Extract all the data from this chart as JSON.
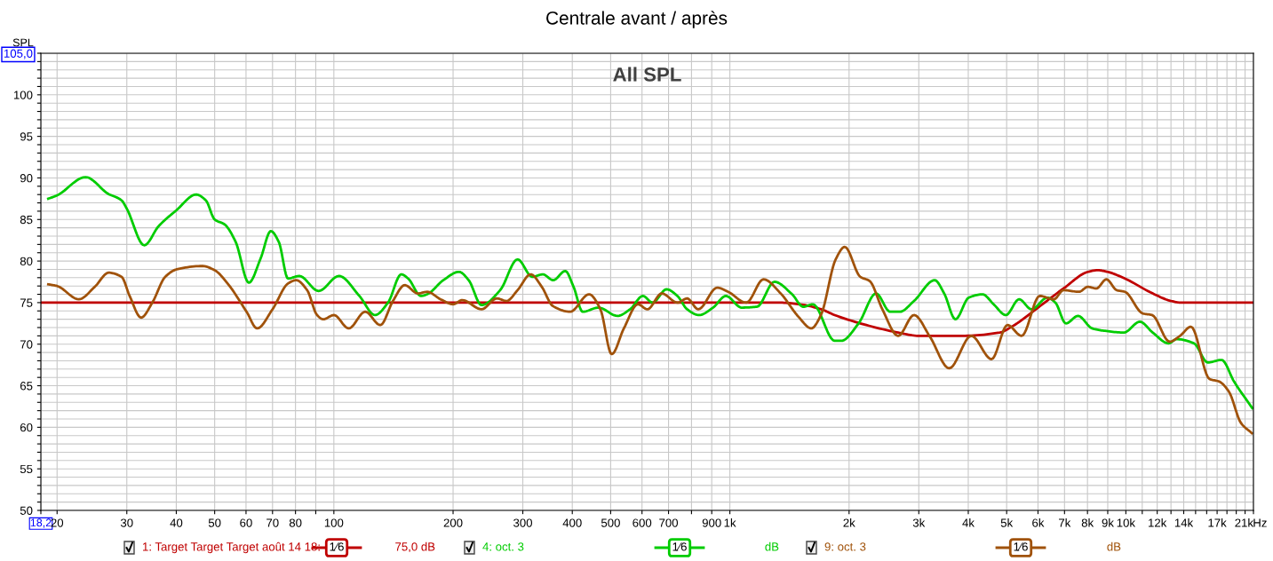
{
  "chart_data": {
    "type": "line",
    "title": "Centrale avant / après",
    "ylabel": "SPL",
    "annotations": [
      "All SPL",
      "1⁄6",
      "75,0 dB",
      "1⁄6",
      "dB",
      "1⁄6",
      "dB"
    ],
    "xlim": [
      18.2,
      21000
    ],
    "ylim": [
      50,
      105
    ],
    "log": "x",
    "grid": true,
    "legend": "bottom",
    "xticks": [
      {
        "value": 18.2,
        "label": "18,2"
      },
      20,
      30,
      40,
      50,
      60,
      70,
      80,
      {
        "value": 90,
        "label": null
      },
      100,
      200,
      300,
      400,
      500,
      600,
      700,
      {
        "value": 800,
        "label": null
      },
      900,
      {
        "value": 1000,
        "label": "1k"
      },
      {
        "value": 2000,
        "label": "2k"
      },
      {
        "value": 3000,
        "label": "3k"
      },
      {
        "value": 4000,
        "label": "4k"
      },
      {
        "value": 5000,
        "label": "5k"
      },
      {
        "value": 6000,
        "label": "6k"
      },
      {
        "value": 7000,
        "label": "7k"
      },
      {
        "value": 8000,
        "label": "8k"
      },
      {
        "value": 9000,
        "label": "9k"
      },
      {
        "value": 10000,
        "label": "10k"
      },
      {
        "value": 11000,
        "label": null
      },
      {
        "value": 12000,
        "label": "12k"
      },
      {
        "value": 13000,
        "label": null
      },
      {
        "value": 14000,
        "label": "14k"
      },
      {
        "value": 15000,
        "label": null
      },
      {
        "value": 16000,
        "label": null
      },
      {
        "value": 17000,
        "label": "17k"
      },
      {
        "value": 18000,
        "label": null
      },
      {
        "value": 19000,
        "label": null
      },
      {
        "value": 20000,
        "label": null
      },
      {
        "value": 21000,
        "label": "21k"
      }
    ],
    "xlabel": "Hz",
    "yticks": [
      50,
      {
        "value": 51,
        "label": null
      },
      {
        "value": 52,
        "label": null
      },
      {
        "value": 53,
        "label": null
      },
      {
        "value": 54,
        "label": null
      },
      55,
      {
        "value": 56,
        "label": null
      },
      {
        "value": 57,
        "label": null
      },
      {
        "value": 58,
        "label": null
      },
      {
        "value": 59,
        "label": null
      },
      60,
      {
        "value": 61,
        "label": null
      },
      {
        "value": 62,
        "label": null
      },
      {
        "value": 63,
        "label": null
      },
      {
        "value": 64,
        "label": null
      },
      65,
      {
        "value": 66,
        "label": null
      },
      {
        "value": 67,
        "label": null
      },
      {
        "value": 68,
        "label": null
      },
      {
        "value": 69,
        "label": null
      },
      70,
      {
        "value": 71,
        "label": null
      },
      {
        "value": 72,
        "label": null
      },
      {
        "value": 73,
        "label": null
      },
      {
        "value": 74,
        "label": null
      },
      75,
      {
        "value": 76,
        "label": null
      },
      {
        "value": 77,
        "label": null
      },
      {
        "value": 78,
        "label": null
      },
      {
        "value": 79,
        "label": null
      },
      80,
      {
        "value": 81,
        "label": null
      },
      {
        "value": 82,
        "label": null
      },
      {
        "value": 83,
        "label": null
      },
      {
        "value": 84,
        "label": null
      },
      85,
      {
        "value": 86,
        "label": null
      },
      {
        "value": 87,
        "label": null
      },
      {
        "value": 88,
        "label": null
      },
      {
        "value": 89,
        "label": null
      },
      90,
      {
        "value": 91,
        "label": null
      },
      {
        "value": 92,
        "label": null
      },
      {
        "value": 93,
        "label": null
      },
      {
        "value": 94,
        "label": null
      },
      95,
      {
        "value": 96,
        "label": null
      },
      {
        "value": 97,
        "label": null
      },
      {
        "value": 98,
        "label": null
      },
      {
        "value": 99,
        "label": null
      },
      100,
      {
        "value": 101,
        "label": null
      },
      {
        "value": 102,
        "label": null
      },
      {
        "value": 103,
        "label": null
      },
      {
        "value": 104,
        "label": null
      },
      {
        "value": 105,
        "label": "105,0"
      }
    ],
    "series": [
      {
        "name": "1: Target Target Target août 14 18:",
        "color": "#c00000",
        "x": [
          18.2,
          1330,
          1500,
          1700,
          1840,
          2211,
          2660,
          3000,
          3850,
          4800,
          5190,
          6000,
          6960,
          8020,
          8490,
          8990,
          9942,
          11690,
          13000,
          13750,
          20860
        ],
        "values": [
          75,
          75,
          74.8,
          74.2,
          73.5,
          72.3,
          71.4,
          71,
          71,
          71.4,
          72.2,
          74.4,
          76.7,
          78.7,
          78.9,
          78.7,
          77.9,
          76.1,
          75.2,
          75,
          75
        ]
      },
      {
        "name": "4: oct. 3",
        "color": "#00cc00",
        "x": [
          19,
          20,
          23.6,
          26.9,
          29.1,
          30,
          33.2,
          36.1,
          40,
          44.9,
          47.5,
          50,
          53,
          56.5,
          61,
          65.3,
          69.3,
          72.6,
          76.6,
          81.8,
          91.5,
          103,
          116,
          127,
          137,
          148,
          154,
          166,
          172,
          189,
          207,
          219,
          236,
          263,
          291,
          317,
          337,
          358,
          384,
          403,
          425,
          466,
          520,
          560,
          603,
          638,
          692,
          737,
          780,
          836,
          907,
          977,
          1071,
          1171,
          1296,
          1436,
          1532,
          1620,
          1840,
          1910,
          2114,
          2340,
          2540,
          2686,
          2918,
          3290,
          3477,
          3712,
          4012,
          4345,
          4635,
          4977,
          5376,
          5776,
          6336,
          6637,
          7058,
          7572,
          8220,
          8856,
          9885,
          10848,
          11690,
          12820,
          13430,
          14860,
          16100,
          17450,
          18760,
          20860
        ],
        "values": [
          87.5,
          87.9,
          90.1,
          88.1,
          87.3,
          86.3,
          81.9,
          84.2,
          86.1,
          88.0,
          87.3,
          85.0,
          84.4,
          82.3,
          77.4,
          80.3,
          83.6,
          82.3,
          77.9,
          78.2,
          76.4,
          78.2,
          75.8,
          73.5,
          75,
          78.4,
          77.9,
          75.8,
          76,
          77.7,
          78.7,
          77.7,
          74.7,
          76.5,
          80.2,
          78.1,
          78.4,
          77.7,
          78.8,
          76.9,
          73.9,
          74.4,
          73.4,
          74.2,
          75.8,
          75,
          76.6,
          75.8,
          74.2,
          73.5,
          74.4,
          75.8,
          74.4,
          74.5,
          77.5,
          76,
          74.5,
          74.8,
          70.4,
          70.4,
          72.5,
          76.1,
          73.9,
          73.9,
          75.2,
          77.7,
          76.1,
          73,
          75.6,
          76,
          74.8,
          73.5,
          75.4,
          74.2,
          75.6,
          75,
          72.5,
          73.4,
          71.9,
          71.6,
          71.4,
          72.7,
          71.4,
          70.1,
          70.6,
          70.1,
          67.8,
          68.1,
          65.5,
          62.3
        ]
      },
      {
        "name": "9: oct. 3",
        "color": "#a0520a",
        "x": [
          19,
          20,
          22.7,
          24.9,
          27,
          29.1,
          30.5,
          32.6,
          34.8,
          37.5,
          40.1,
          46.6,
          50,
          53.9,
          60.2,
          64,
          70,
          76.6,
          80.3,
          85.6,
          90.7,
          94,
          100,
          109,
          120,
          131,
          141,
          151,
          163,
          172,
          186,
          200,
          211,
          236,
          258,
          273,
          291,
          314,
          335,
          357,
          395,
          441,
          471,
          503,
          540,
          586,
          619,
          673,
          737,
          780,
          832,
          929,
          990,
          1100,
          1216,
          1344,
          1490,
          1606,
          1698,
          1850,
          1950,
          2135,
          2254,
          2427,
          2660,
          2918,
          3200,
          3580,
          4072,
          4580,
          5024,
          5455,
          6060,
          6580,
          6960,
          7610,
          8020,
          8420,
          8930,
          9480,
          9942,
          11030,
          11650,
          12900,
          13700,
          14600,
          16270,
          17210,
          18200,
          19540,
          20800
        ],
        "values": [
          77.2,
          77,
          75.4,
          76.9,
          78.6,
          78.1,
          75.8,
          73.2,
          75,
          78.1,
          79,
          79.4,
          78.9,
          77.3,
          73.9,
          71.9,
          74.2,
          77.3,
          77.7,
          76.5,
          73.5,
          73,
          73.5,
          71.9,
          73.9,
          72.3,
          75.2,
          77.1,
          76.1,
          76.3,
          75.4,
          74.8,
          75.3,
          74.2,
          75.5,
          75.2,
          76.5,
          78.4,
          76.9,
          74.6,
          73.9,
          76,
          74.2,
          68.8,
          71.9,
          74.8,
          74.2,
          76.1,
          75,
          75.5,
          74.2,
          76.8,
          76.3,
          75,
          77.8,
          76.1,
          73.3,
          71.9,
          73.5,
          80.2,
          81.7,
          78.1,
          77.6,
          74.2,
          71,
          73.5,
          70.9,
          67.1,
          71,
          68.2,
          72.3,
          71,
          75.8,
          75.4,
          76.5,
          76.3,
          76.9,
          76.7,
          77.8,
          76.5,
          76.3,
          73.7,
          73.5,
          70.3,
          71,
          72.1,
          65.8,
          65.5,
          64.3,
          60.5,
          59.3
        ]
      }
    ]
  }
}
